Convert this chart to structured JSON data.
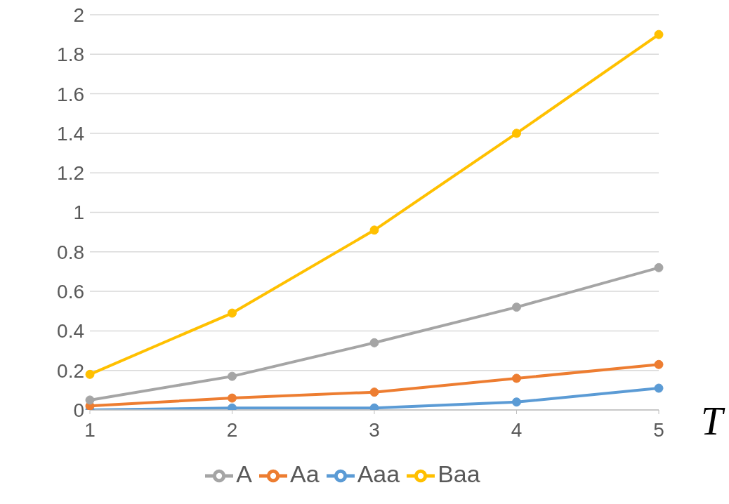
{
  "chart_data": {
    "type": "line",
    "xlabel": "T",
    "categories": [
      "1",
      "2",
      "3",
      "4",
      "5"
    ],
    "series": [
      {
        "name": "Aaa",
        "color": "#5b9bd5",
        "values": [
          0,
          0.01,
          0.01,
          0.04,
          0.11
        ]
      },
      {
        "name": "Aa",
        "color": "#ed7d31",
        "values": [
          0.02,
          0.06,
          0.09,
          0.16,
          0.23
        ]
      },
      {
        "name": "A",
        "color": "#a5a5a5",
        "values": [
          0.05,
          0.17,
          0.34,
          0.52,
          0.72
        ]
      },
      {
        "name": "Baa",
        "color": "#ffc000",
        "values": [
          0.18,
          0.49,
          0.91,
          1.4,
          1.9
        ]
      }
    ],
    "ylim": [
      0,
      2
    ],
    "yticks": [
      0,
      0.2,
      0.4,
      0.6,
      0.8,
      1,
      1.2,
      1.4,
      1.6,
      1.8,
      2
    ],
    "grid": "y",
    "legend": "bottom",
    "marker": "circle",
    "line_style": "solid"
  }
}
